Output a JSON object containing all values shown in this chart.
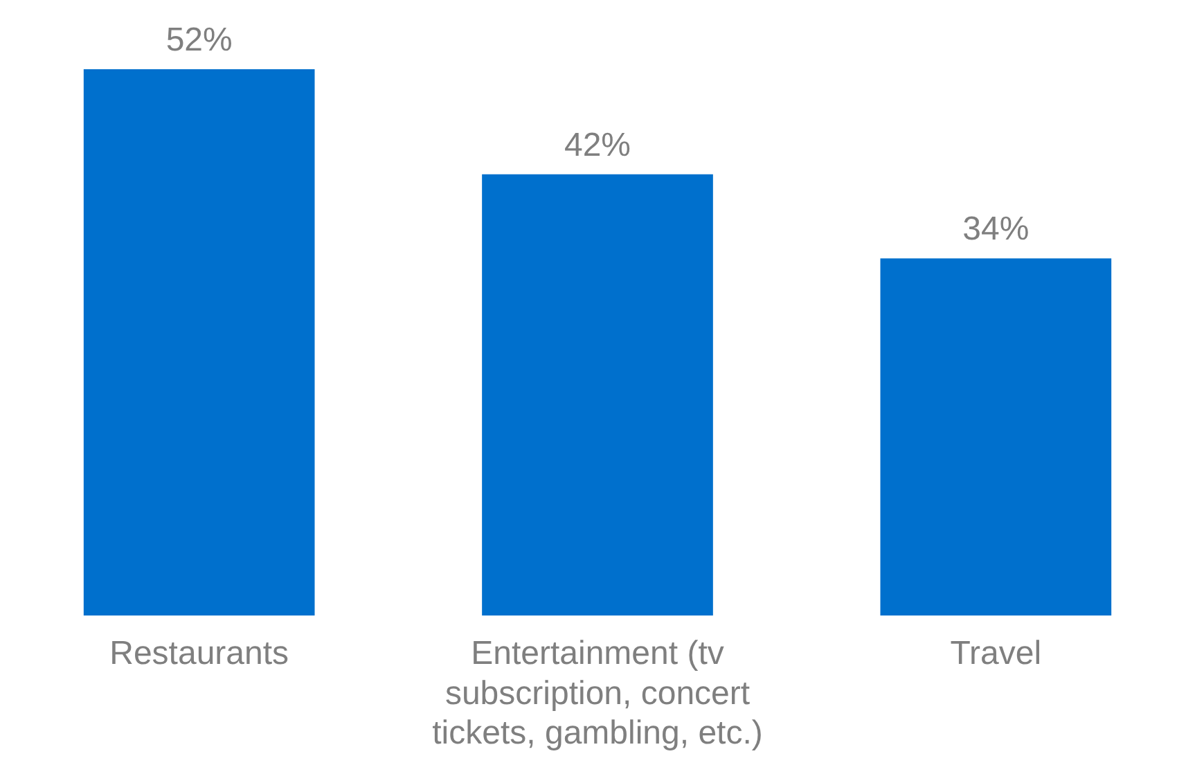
{
  "chart_data": {
    "type": "bar",
    "categories": [
      "Restaurants",
      "Entertainment (tv subscription, concert tickets, gambling, etc.)",
      "Travel"
    ],
    "values": [
      52,
      42,
      34
    ],
    "value_labels": [
      "52%",
      "42%",
      "34%"
    ],
    "color": "#0070cd",
    "tick_labels": "x",
    "grid": false,
    "legend": false
  }
}
